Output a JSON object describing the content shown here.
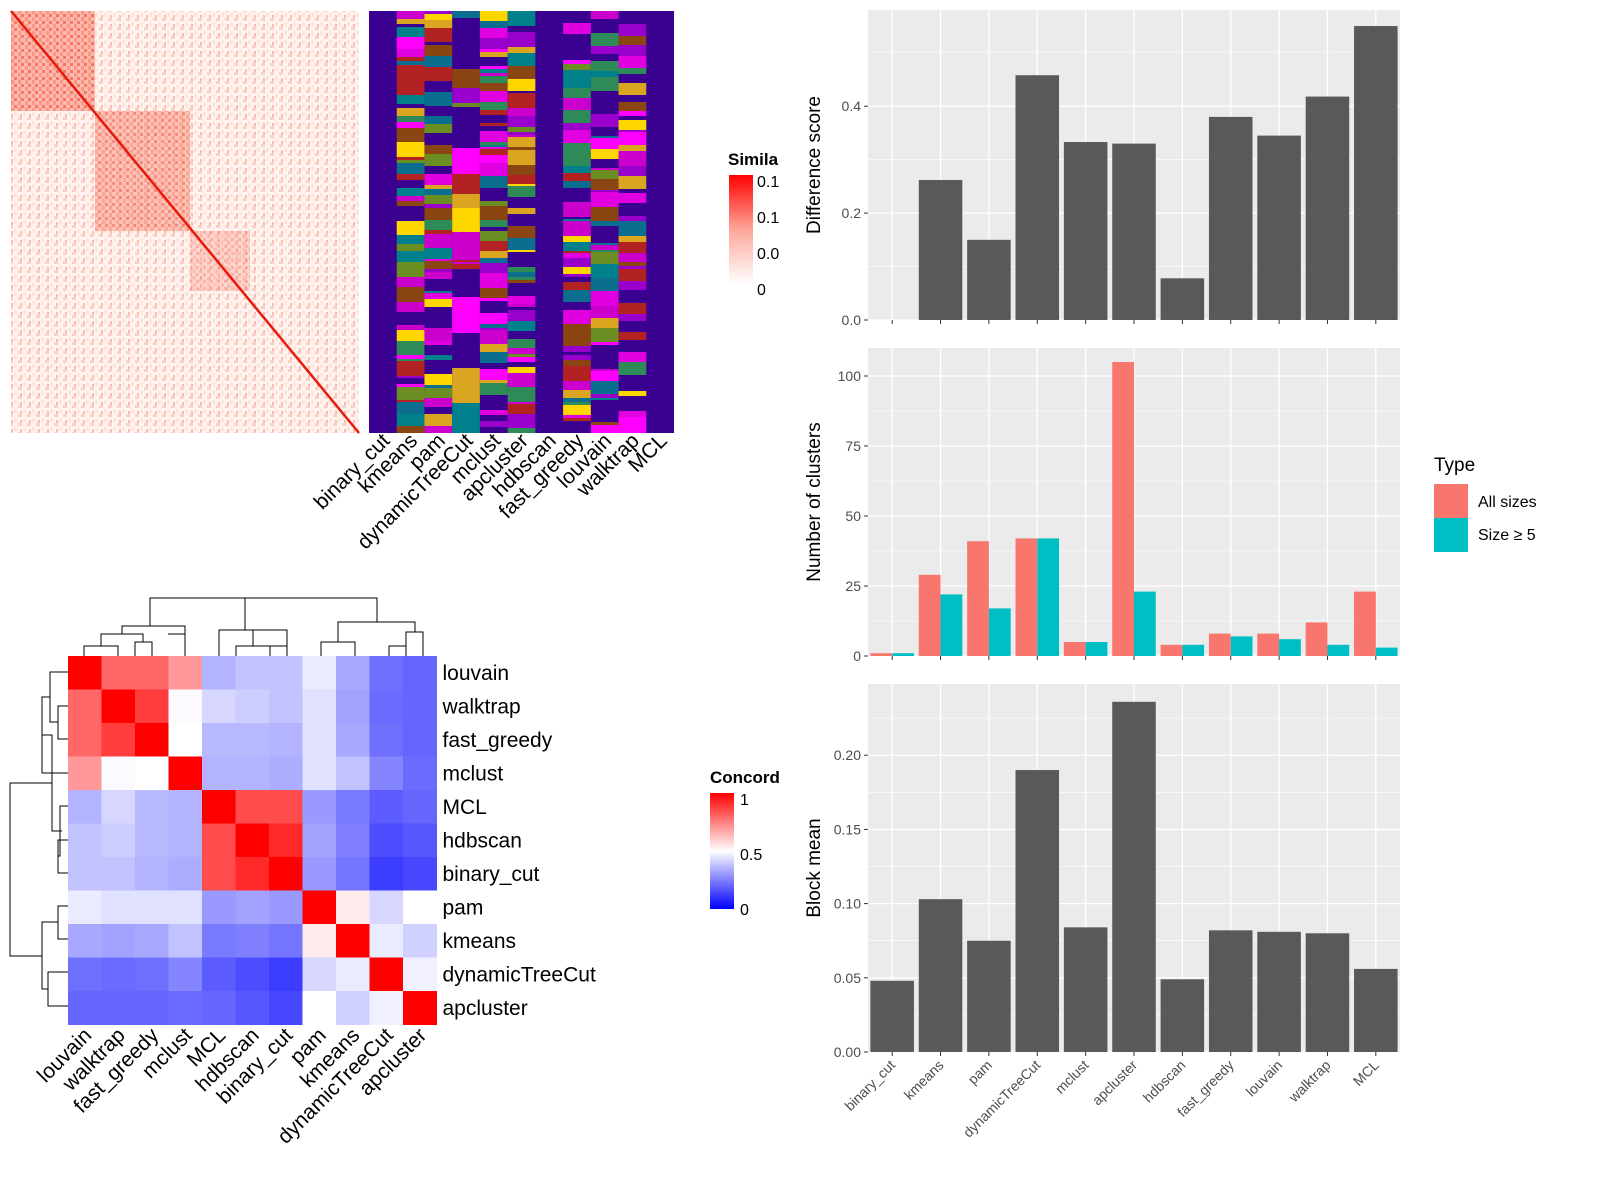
{
  "colors": {
    "panel_bg": "#ebebeb",
    "grid": "#ffffff",
    "bar_fill": "#595959",
    "all_sizes": "#f8766d",
    "size_ge5": "#00bfc4",
    "heat_red": "#ff0000",
    "heat_white": "#ffffff",
    "heat_blue": "#0000ff",
    "cluster_bg": "#3a0090"
  },
  "similarity_heatmap": {
    "legend_title": "Simila",
    "legend_ticks": [
      "0.1",
      "0.1",
      "0.0",
      "0"
    ],
    "method_labels": [
      "binary_cut",
      "kmeans",
      "pam",
      "dynamicTreeCut",
      "mclust",
      "apcluster",
      "hdbscan",
      "fast_greedy",
      "louvain",
      "walktrap",
      "MCL"
    ]
  },
  "concordance": {
    "legend_title": "Concord",
    "legend_ticks": [
      "1",
      "0.5",
      "0"
    ],
    "row_labels": [
      "louvain",
      "walktrap",
      "fast_greedy",
      "mclust",
      "MCL",
      "hdbscan",
      "binary_cut",
      "pam",
      "kmeans",
      "dynamicTreeCut",
      "apcluster"
    ],
    "col_labels": [
      "louvain",
      "walktrap",
      "fast_greedy",
      "mclust",
      "MCL",
      "hdbscan",
      "binary_cut",
      "pam",
      "kmeans",
      "dynamicTreeCut",
      "apcluster"
    ],
    "matrix": [
      [
        1.0,
        0.8,
        0.8,
        0.7,
        0.35,
        0.38,
        0.38,
        0.46,
        0.33,
        0.22,
        0.2
      ],
      [
        0.8,
        1.0,
        0.88,
        0.49,
        0.42,
        0.4,
        0.38,
        0.44,
        0.32,
        0.21,
        0.2
      ],
      [
        0.8,
        0.88,
        1.0,
        0.5,
        0.36,
        0.36,
        0.35,
        0.44,
        0.33,
        0.22,
        0.2
      ],
      [
        0.7,
        0.49,
        0.5,
        1.0,
        0.35,
        0.35,
        0.34,
        0.44,
        0.38,
        0.26,
        0.21
      ],
      [
        0.35,
        0.42,
        0.36,
        0.35,
        1.0,
        0.85,
        0.85,
        0.3,
        0.24,
        0.18,
        0.2
      ],
      [
        0.38,
        0.4,
        0.36,
        0.35,
        0.85,
        1.0,
        0.92,
        0.32,
        0.25,
        0.15,
        0.17
      ],
      [
        0.38,
        0.38,
        0.35,
        0.34,
        0.85,
        0.92,
        1.0,
        0.3,
        0.23,
        0.12,
        0.14
      ],
      [
        0.46,
        0.44,
        0.44,
        0.44,
        0.3,
        0.32,
        0.3,
        1.0,
        0.54,
        0.42,
        0.5
      ],
      [
        0.33,
        0.32,
        0.33,
        0.38,
        0.24,
        0.25,
        0.23,
        0.54,
        1.0,
        0.46,
        0.41
      ],
      [
        0.22,
        0.21,
        0.22,
        0.26,
        0.18,
        0.15,
        0.12,
        0.42,
        0.46,
        1.0,
        0.47
      ],
      [
        0.2,
        0.2,
        0.2,
        0.21,
        0.2,
        0.17,
        0.14,
        0.5,
        0.41,
        0.47,
        1.0
      ]
    ]
  },
  "chart_data": [
    {
      "type": "bar",
      "ylabel": "Difference score",
      "categories": [
        "binary_cut",
        "kmeans",
        "pam",
        "dynamicTreeCut",
        "mclust",
        "apcluster",
        "hdbscan",
        "fast_greedy",
        "louvain",
        "walktrap",
        "MCL"
      ],
      "values": [
        0.0,
        0.262,
        0.15,
        0.458,
        0.333,
        0.33,
        0.078,
        0.38,
        0.345,
        0.418,
        0.55
      ],
      "ylim": [
        0,
        0.58
      ],
      "yticks": [
        0.0,
        0.2,
        0.4
      ],
      "ytick_labels": [
        "0.0",
        "0.2",
        "0.4"
      ],
      "grid": true
    },
    {
      "type": "bar",
      "ylabel": "Number of clusters",
      "categories": [
        "binary_cut",
        "kmeans",
        "pam",
        "dynamicTreeCut",
        "mclust",
        "apcluster",
        "hdbscan",
        "fast_greedy",
        "louvain",
        "walktrap",
        "MCL"
      ],
      "series": [
        {
          "name": "All sizes",
          "values": [
            1,
            29,
            41,
            42,
            5,
            105,
            4,
            8,
            8,
            12,
            23
          ]
        },
        {
          "name": "Size ≥ 5",
          "values": [
            1,
            22,
            17,
            42,
            5,
            23,
            4,
            7,
            6,
            4,
            3
          ]
        }
      ],
      "ylim": [
        0,
        110
      ],
      "yticks": [
        0,
        25,
        50,
        75,
        100
      ],
      "ytick_labels": [
        "0",
        "25",
        "50",
        "75",
        "100"
      ],
      "legend_title": "Type",
      "legend_position": "right",
      "grid": true
    },
    {
      "type": "bar",
      "ylabel": "Block mean",
      "categories": [
        "binary_cut",
        "kmeans",
        "pam",
        "dynamicTreeCut",
        "mclust",
        "apcluster",
        "hdbscan",
        "fast_greedy",
        "louvain",
        "walktrap",
        "MCL"
      ],
      "values": [
        0.048,
        0.103,
        0.075,
        0.19,
        0.084,
        0.236,
        0.049,
        0.082,
        0.081,
        0.08,
        0.056
      ],
      "ylim": [
        0,
        0.248
      ],
      "yticks": [
        0.0,
        0.05,
        0.1,
        0.15,
        0.2
      ],
      "ytick_labels": [
        "0.00",
        "0.05",
        "0.10",
        "0.15",
        "0.20"
      ],
      "grid": true
    }
  ]
}
